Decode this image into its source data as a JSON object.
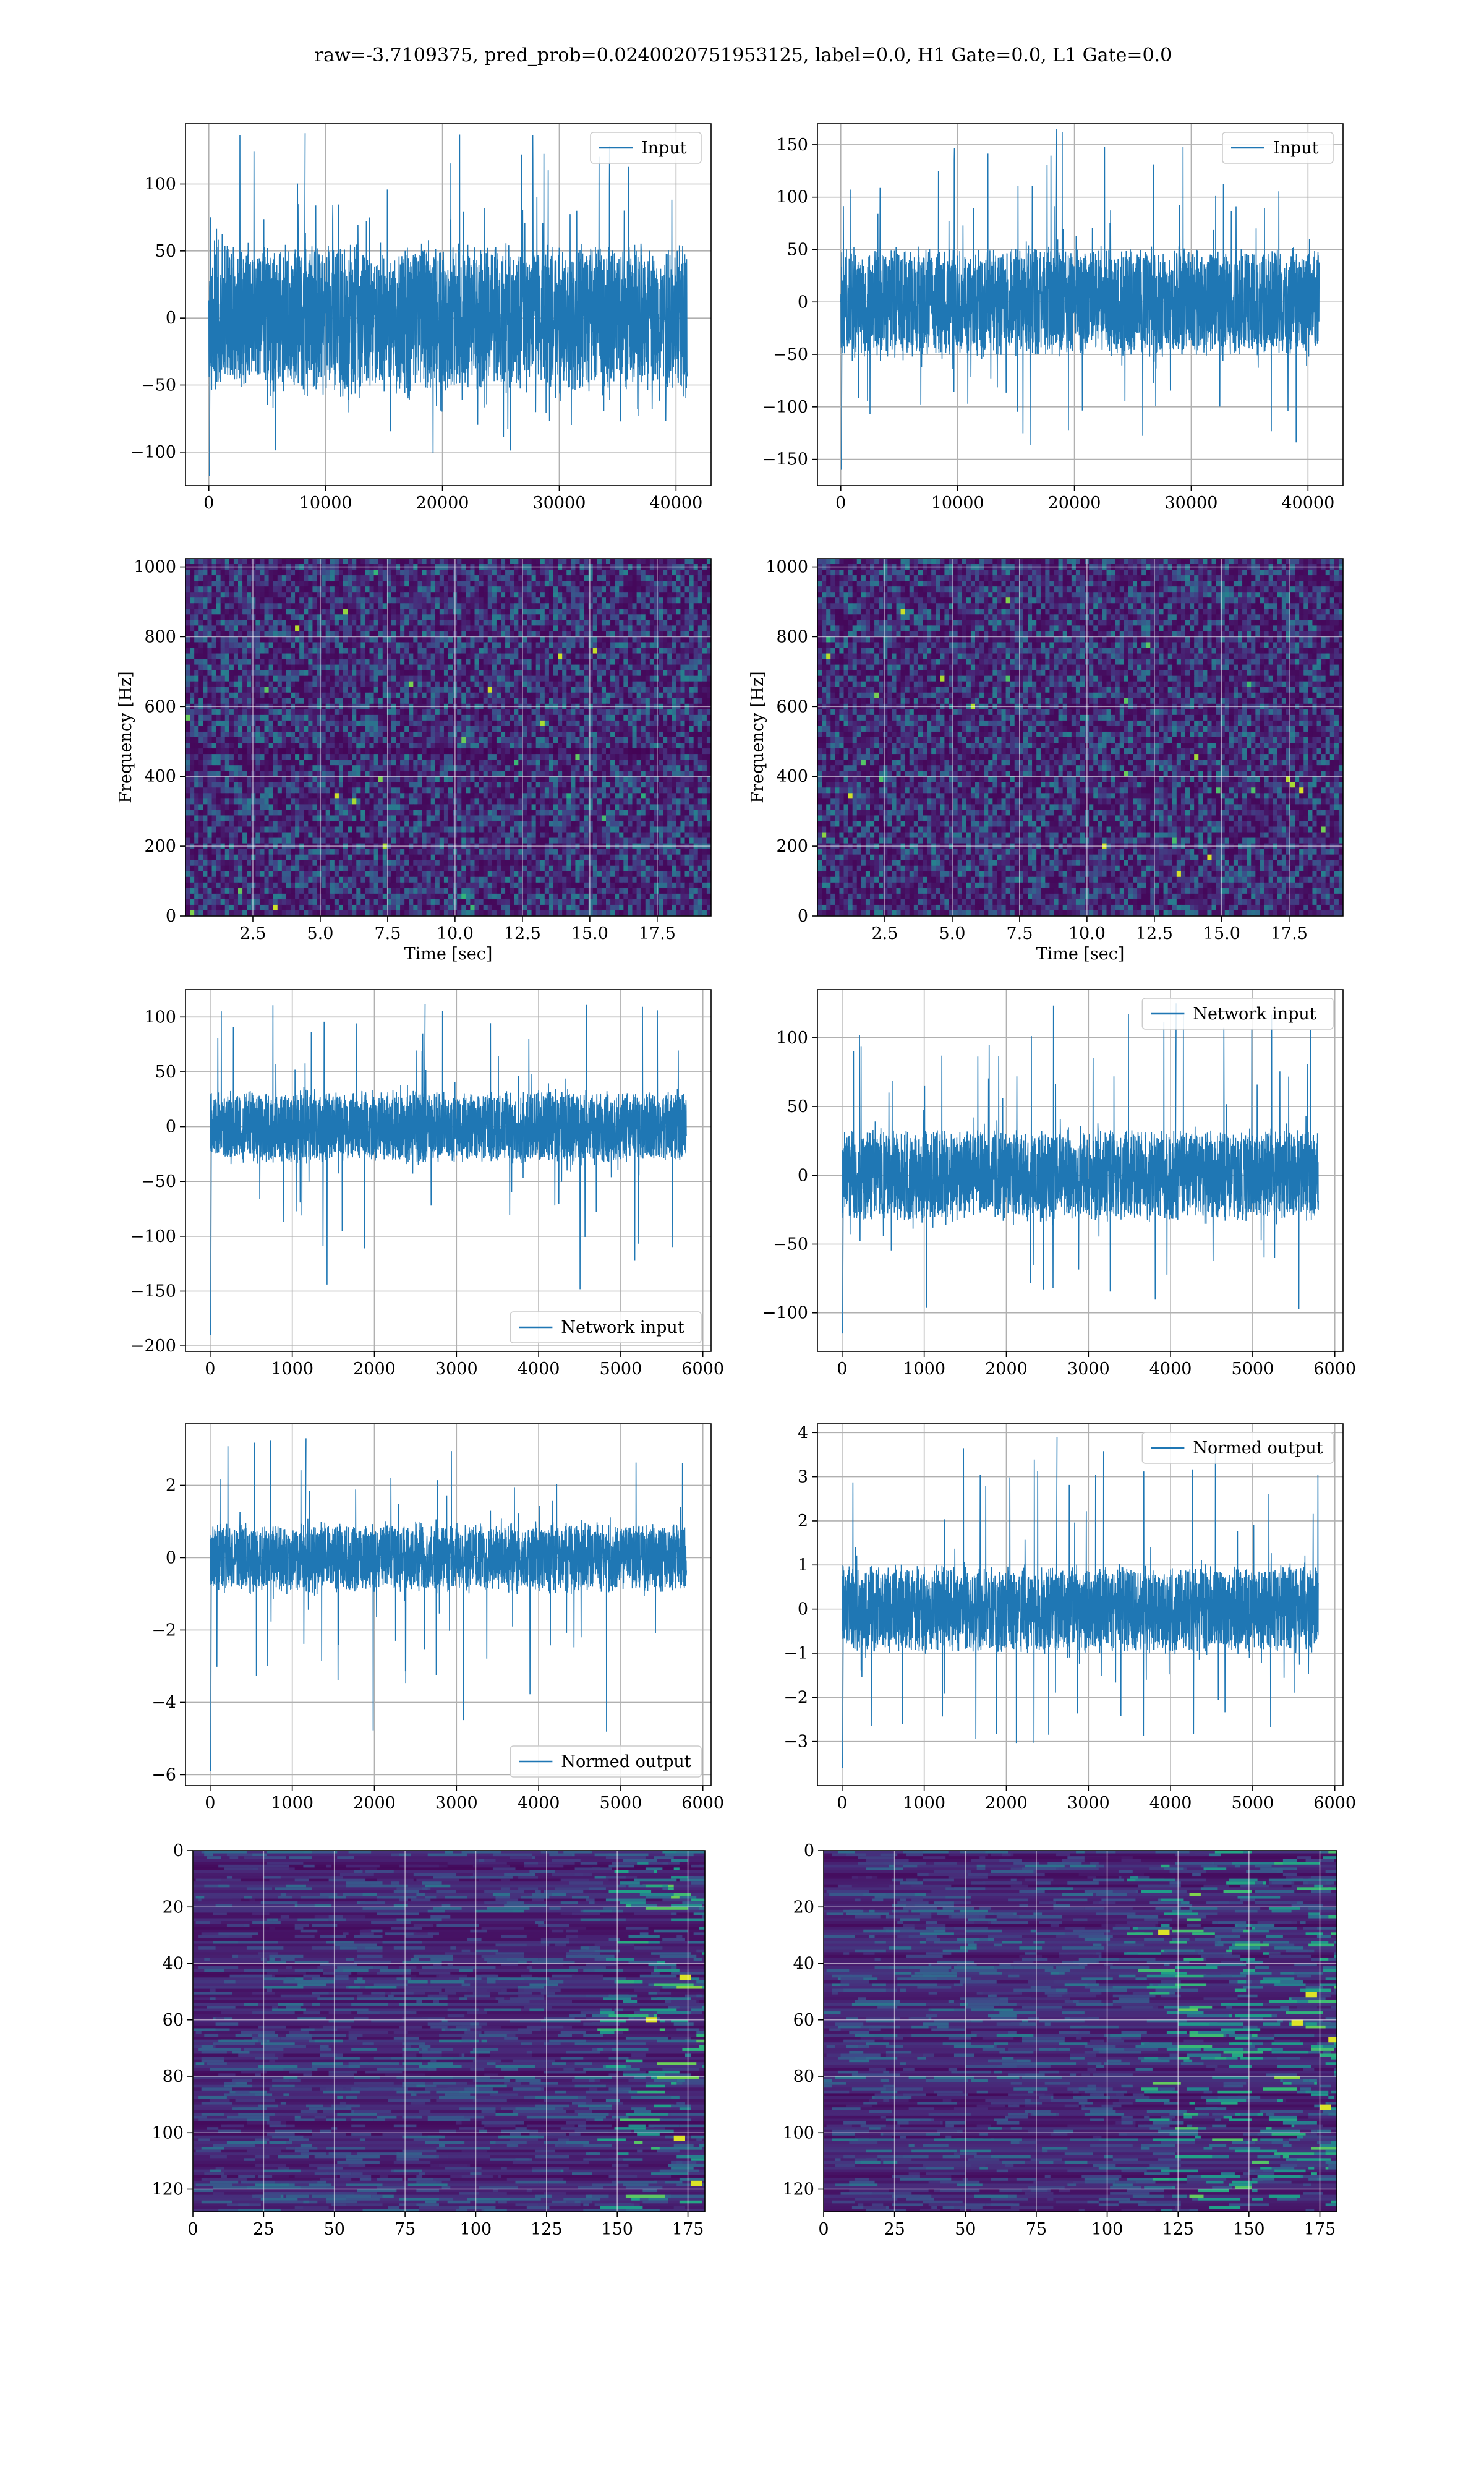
{
  "title": "raw=-3.7109375, pred_prob=0.0240020751953125, label=0.0, H1 Gate=0.0, L1 Gate=0.0",
  "colors": {
    "line": "#1f77b4",
    "grid": "#b0b0b0",
    "axes": "#000000",
    "viridis_dark": "#440154",
    "viridis_mid": "#21918c",
    "viridis_light": "#fde725"
  },
  "chart_data": [
    {
      "id": "p11",
      "type": "line",
      "legend": [
        "Input"
      ],
      "legend_loc": "upper right",
      "xlim": [
        -2000,
        43000
      ],
      "ylim": [
        -125,
        145
      ],
      "xticks": [
        0,
        10000,
        20000,
        30000,
        40000
      ],
      "xtick_labels": [
        "0",
        "10000",
        "20000",
        "30000",
        "40000"
      ],
      "yticks": [
        -100,
        -50,
        0,
        50,
        100
      ],
      "ytick_labels": [
        "−100",
        "−50",
        "0",
        "50",
        "100"
      ],
      "grid": true,
      "series": [
        {
          "name": "Input",
          "n_samples": 40960,
          "x_range": [
            0,
            40960
          ],
          "core_amp": 58,
          "peak_high": 138,
          "peak_low": -118
        }
      ]
    },
    {
      "id": "p12",
      "type": "line",
      "legend": [
        "Input"
      ],
      "legend_loc": "upper right",
      "xlim": [
        -2000,
        43000
      ],
      "ylim": [
        -175,
        170
      ],
      "xticks": [
        0,
        10000,
        20000,
        30000,
        40000
      ],
      "xtick_labels": [
        "0",
        "10000",
        "20000",
        "30000",
        "40000"
      ],
      "yticks": [
        -150,
        -100,
        -50,
        0,
        50,
        100,
        150
      ],
      "ytick_labels": [
        "−150",
        "−100",
        "−50",
        "0",
        "50",
        "100",
        "150"
      ],
      "grid": true,
      "series": [
        {
          "name": "Input",
          "n_samples": 40960,
          "x_range": [
            0,
            40960
          ],
          "core_amp": 55,
          "peak_high": 165,
          "peak_low": -160
        }
      ]
    },
    {
      "id": "p21",
      "type": "heatmap",
      "ylabel": "Frequency [Hz]",
      "xlabel": "Time [sec]",
      "xlim": [
        0,
        19.5
      ],
      "ylim": [
        0,
        1024
      ],
      "xticks": [
        2.5,
        5.0,
        7.5,
        10.0,
        12.5,
        15.0,
        17.5
      ],
      "xtick_labels": [
        "2.5",
        "5.0",
        "7.5",
        "10.0",
        "12.5",
        "15.0",
        "17.5"
      ],
      "yticks": [
        0,
        200,
        400,
        600,
        800,
        1000
      ],
      "ytick_labels": [
        "0",
        "200",
        "400",
        "600",
        "800",
        "1000"
      ],
      "grid": true,
      "colormap": "viridis"
    },
    {
      "id": "p22",
      "type": "heatmap",
      "ylabel": "Frequency [Hz]",
      "xlabel": "Time [sec]",
      "xlim": [
        0,
        19.5
      ],
      "ylim": [
        0,
        1024
      ],
      "xticks": [
        2.5,
        5.0,
        7.5,
        10.0,
        12.5,
        15.0,
        17.5
      ],
      "xtick_labels": [
        "2.5",
        "5.0",
        "7.5",
        "10.0",
        "12.5",
        "15.0",
        "17.5"
      ],
      "yticks": [
        0,
        200,
        400,
        600,
        800,
        1000
      ],
      "ytick_labels": [
        "0",
        "200",
        "400",
        "600",
        "800",
        "1000"
      ],
      "grid": true,
      "colormap": "viridis"
    },
    {
      "id": "p31",
      "type": "line",
      "legend": [
        "Network input"
      ],
      "legend_loc": "lower right",
      "xlim": [
        -300,
        6100
      ],
      "ylim": [
        -205,
        125
      ],
      "xticks": [
        0,
        1000,
        2000,
        3000,
        4000,
        5000,
        6000
      ],
      "xtick_labels": [
        "0",
        "1000",
        "2000",
        "3000",
        "4000",
        "5000",
        "6000"
      ],
      "yticks": [
        -200,
        -150,
        -100,
        -50,
        0,
        50,
        100
      ],
      "ytick_labels": [
        "−200",
        "−150",
        "−100",
        "−50",
        "0",
        "50",
        "100"
      ],
      "grid": true,
      "series": [
        {
          "name": "Network input",
          "n_samples": 5800,
          "x_range": [
            0,
            5800
          ],
          "core_amp": 35,
          "peak_high": 112,
          "peak_low": -190
        }
      ]
    },
    {
      "id": "p32",
      "type": "line",
      "legend": [
        "Network input"
      ],
      "legend_loc": "upper right",
      "xlim": [
        -300,
        6100
      ],
      "ylim": [
        -128,
        135
      ],
      "xticks": [
        0,
        1000,
        2000,
        3000,
        4000,
        5000,
        6000
      ],
      "xtick_labels": [
        "0",
        "1000",
        "2000",
        "3000",
        "4000",
        "5000",
        "6000"
      ],
      "yticks": [
        -100,
        -50,
        0,
        50,
        100
      ],
      "ytick_labels": [
        "−100",
        "−50",
        "0",
        "50",
        "100"
      ],
      "grid": true,
      "series": [
        {
          "name": "Network input",
          "n_samples": 5800,
          "x_range": [
            0,
            5800
          ],
          "core_amp": 35,
          "peak_high": 125,
          "peak_low": -115
        }
      ]
    },
    {
      "id": "p41",
      "type": "line",
      "legend": [
        "Normed output"
      ],
      "legend_loc": "lower right",
      "xlim": [
        -300,
        6100
      ],
      "ylim": [
        -6.3,
        3.7
      ],
      "xticks": [
        0,
        1000,
        2000,
        3000,
        4000,
        5000,
        6000
      ],
      "xtick_labels": [
        "0",
        "1000",
        "2000",
        "3000",
        "4000",
        "5000",
        "6000"
      ],
      "yticks": [
        -6,
        -4,
        -2,
        0,
        2
      ],
      "ytick_labels": [
        "−6",
        "−4",
        "−2",
        "0",
        "2"
      ],
      "grid": true,
      "series": [
        {
          "name": "Normed output",
          "n_samples": 5800,
          "x_range": [
            0,
            5800
          ],
          "core_amp": 1.0,
          "peak_high": 3.3,
          "peak_low": -5.9
        }
      ]
    },
    {
      "id": "p42",
      "type": "line",
      "legend": [
        "Normed output"
      ],
      "legend_loc": "upper right",
      "xlim": [
        -300,
        6100
      ],
      "ylim": [
        -4.0,
        4.2
      ],
      "xticks": [
        0,
        1000,
        2000,
        3000,
        4000,
        5000,
        6000
      ],
      "xtick_labels": [
        "0",
        "1000",
        "2000",
        "3000",
        "4000",
        "5000",
        "6000"
      ],
      "yticks": [
        -3,
        -2,
        -1,
        0,
        1,
        2,
        3,
        4
      ],
      "ytick_labels": [
        "−3",
        "−2",
        "−1",
        "0",
        "1",
        "2",
        "3",
        "4"
      ],
      "grid": true,
      "series": [
        {
          "name": "Normed output",
          "n_samples": 5800,
          "x_range": [
            0,
            5800
          ],
          "core_amp": 1.05,
          "peak_high": 3.9,
          "peak_low": -3.6
        }
      ]
    },
    {
      "id": "p51",
      "type": "heatmap",
      "xlim": [
        0,
        181
      ],
      "ylim": [
        128,
        0
      ],
      "xticks": [
        0,
        25,
        50,
        75,
        100,
        125,
        150,
        175
      ],
      "xtick_labels": [
        "0",
        "25",
        "50",
        "75",
        "100",
        "125",
        "150",
        "175"
      ],
      "yticks": [
        0,
        20,
        40,
        60,
        80,
        100,
        120
      ],
      "ytick_labels": [
        "0",
        "20",
        "40",
        "60",
        "80",
        "100",
        "120"
      ],
      "grid": true,
      "colormap": "viridis"
    },
    {
      "id": "p52",
      "type": "heatmap",
      "xlim": [
        0,
        181
      ],
      "ylim": [
        128,
        0
      ],
      "xticks": [
        0,
        25,
        50,
        75,
        100,
        125,
        150,
        175
      ],
      "xtick_labels": [
        "0",
        "25",
        "50",
        "75",
        "100",
        "125",
        "150",
        "175"
      ],
      "yticks": [
        0,
        20,
        40,
        60,
        80,
        100,
        120
      ],
      "ytick_labels": [
        "0",
        "20",
        "40",
        "60",
        "80",
        "100",
        "120"
      ],
      "grid": true,
      "colormap": "viridis"
    }
  ]
}
